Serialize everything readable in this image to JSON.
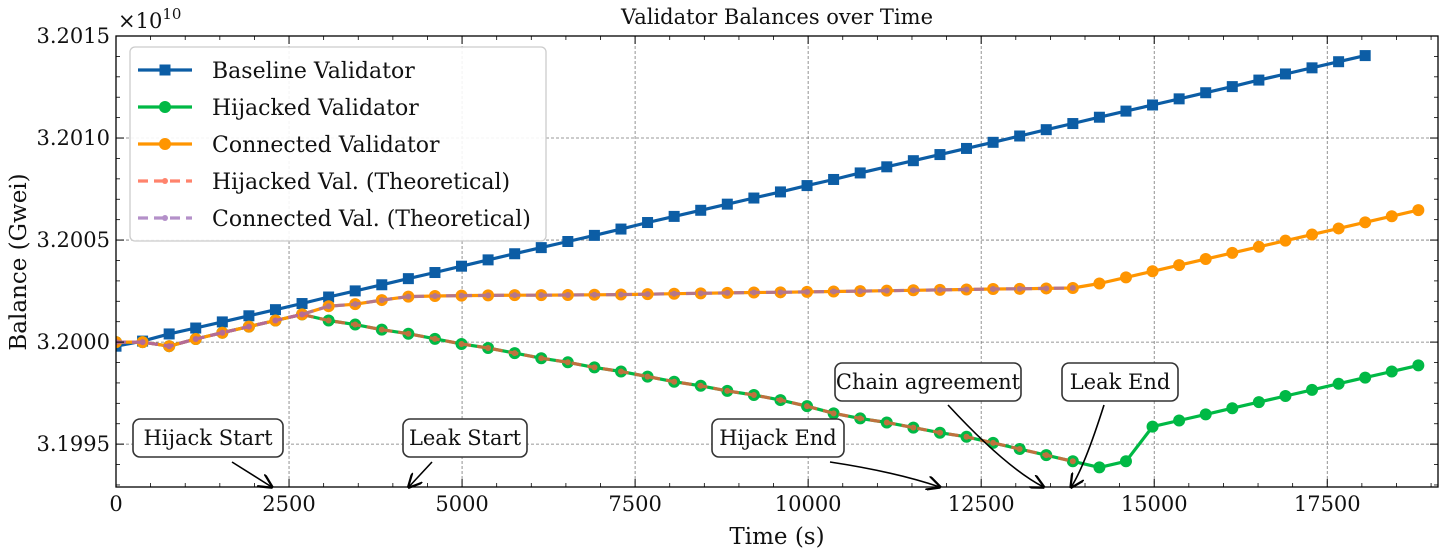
{
  "chart_data": {
    "type": "line",
    "title": "Validator Balances over Time",
    "xlabel": "Time (s)",
    "ylabel": "Balance (Gwei)",
    "y_offset_label": "×10",
    "y_offset_exponent": "10",
    "xlim": [
      0,
      19100
    ],
    "ylim": [
      3.19929,
      3.2015
    ],
    "x_ticks": [
      0,
      2500,
      5000,
      7500,
      10000,
      12500,
      15000,
      17500
    ],
    "x_tick_labels": [
      "0",
      "2500",
      "5000",
      "7500",
      "10000",
      "12500",
      "15000",
      "17500"
    ],
    "y_ticks": [
      3.1995,
      3.2,
      3.2005,
      3.201,
      3.2015
    ],
    "y_tick_labels": [
      "3.1995",
      "3.2000",
      "3.2005",
      "3.2010",
      "3.2015"
    ],
    "grid": true,
    "legend_position": "top-left",
    "series": [
      {
        "name": "Baseline Validator",
        "color": "#0c5da5",
        "marker": "square",
        "style": "solid",
        "x": [
          0,
          384,
          768,
          1152,
          1536,
          1920,
          2304,
          2688,
          3072,
          3456,
          3840,
          4224,
          4608,
          4992,
          5376,
          5760,
          6144,
          6528,
          6912,
          7296,
          7680,
          8064,
          8448,
          8832,
          9216,
          9600,
          9984,
          10368,
          10752,
          11136,
          11520,
          11904,
          12288,
          12672,
          13056,
          13440,
          13824,
          14208,
          14592,
          14976,
          15360,
          15744,
          16128,
          16512,
          16896,
          17280,
          17664,
          18048
        ],
        "values": [
          3.19998,
          3.200005,
          3.20004,
          3.200069,
          3.200099,
          3.200129,
          3.200159,
          3.200189,
          3.200221,
          3.200251,
          3.200281,
          3.200311,
          3.200341,
          3.200372,
          3.200403,
          3.200433,
          3.200463,
          3.200493,
          3.200523,
          3.200554,
          3.200586,
          3.200616,
          3.200646,
          3.200676,
          3.200706,
          3.200736,
          3.200767,
          3.200797,
          3.200829,
          3.200859,
          3.200889,
          3.200919,
          3.200949,
          3.200979,
          3.20101,
          3.201041,
          3.201071,
          3.201102,
          3.201132,
          3.201162,
          3.201192,
          3.201222,
          3.201252,
          3.201284,
          3.201314,
          3.201344,
          3.201374,
          3.201404
        ]
      },
      {
        "name": "Hijacked Validator",
        "color": "#00b945",
        "marker": "circle",
        "style": "solid",
        "x": [
          0,
          384,
          768,
          1152,
          1536,
          1920,
          2304,
          2688,
          3072,
          3456,
          3840,
          4224,
          4608,
          4992,
          5376,
          5760,
          6144,
          6528,
          6912,
          7296,
          7680,
          8064,
          8448,
          8832,
          9216,
          9600,
          9984,
          10368,
          10752,
          11136,
          11520,
          11904,
          12288,
          12672,
          13056,
          13440,
          13824,
          14208,
          14592,
          14976,
          15360,
          15744,
          16128,
          16512,
          16896,
          17280,
          17664,
          18048,
          18432,
          18816
        ],
        "values": [
          3.2,
          3.2,
          3.19998,
          3.200015,
          3.200046,
          3.200076,
          3.200106,
          3.200136,
          3.200106,
          3.200086,
          3.200061,
          3.200041,
          3.200016,
          3.199991,
          3.199971,
          3.199946,
          3.199921,
          3.199901,
          3.199876,
          3.199856,
          3.199831,
          3.199806,
          3.199786,
          3.199761,
          3.199741,
          3.199716,
          3.199686,
          3.199651,
          3.199626,
          3.199606,
          3.199581,
          3.199556,
          3.199536,
          3.199506,
          3.199476,
          3.199446,
          3.199416,
          3.199386,
          3.199416,
          3.199586,
          3.199616,
          3.199646,
          3.199676,
          3.199706,
          3.199736,
          3.199766,
          3.199796,
          3.199826,
          3.199856,
          3.199886
        ]
      },
      {
        "name": "Connected Validator",
        "color": "#ff9500",
        "marker": "circle",
        "style": "solid",
        "x": [
          0,
          384,
          768,
          1152,
          1536,
          1920,
          2304,
          2688,
          3072,
          3456,
          3840,
          4224,
          4608,
          4992,
          5376,
          5760,
          6144,
          6528,
          6912,
          7296,
          7680,
          8064,
          8448,
          8832,
          9216,
          9600,
          9984,
          10368,
          10752,
          11136,
          11520,
          11904,
          12288,
          12672,
          13056,
          13440,
          13824,
          14208,
          14592,
          14976,
          15360,
          15744,
          16128,
          16512,
          16896,
          17280,
          17664,
          18048,
          18432,
          18816
        ],
        "values": [
          3.2,
          3.2,
          3.19998,
          3.200015,
          3.200046,
          3.200076,
          3.200106,
          3.200136,
          3.200176,
          3.200186,
          3.200206,
          3.200223,
          3.200226,
          3.200228,
          3.200229,
          3.20023,
          3.20023,
          3.200231,
          3.200232,
          3.200233,
          3.200235,
          3.200237,
          3.200239,
          3.200241,
          3.200243,
          3.200244,
          3.200246,
          3.200248,
          3.20025,
          3.200252,
          3.200254,
          3.200256,
          3.200258,
          3.20026,
          3.200261,
          3.200263,
          3.200265,
          3.200287,
          3.200317,
          3.200347,
          3.200377,
          3.200407,
          3.200437,
          3.200467,
          3.200497,
          3.200527,
          3.200557,
          3.200587,
          3.200617,
          3.200647
        ]
      },
      {
        "name": "Hijacked Val. (Theoretical)",
        "color": "#ff5a3c",
        "marker": "small-circle",
        "style": "dashed",
        "x": [
          0,
          384,
          768,
          1152,
          1536,
          1920,
          2304,
          2688,
          3072,
          3456,
          3840,
          4224,
          4608,
          4992,
          5376,
          5760,
          6144,
          6528,
          6912,
          7296,
          7680,
          8064,
          8448,
          8832,
          9216,
          9600,
          9984,
          10368,
          10752,
          11136,
          11520,
          11904,
          12288,
          12672,
          13056,
          13440,
          13824
        ],
        "values": [
          3.2,
          3.2,
          3.19998,
          3.200015,
          3.200046,
          3.200076,
          3.200106,
          3.200136,
          3.200106,
          3.200086,
          3.200061,
          3.200041,
          3.200016,
          3.199991,
          3.199971,
          3.199946,
          3.199921,
          3.199901,
          3.199876,
          3.199856,
          3.199831,
          3.199806,
          3.199786,
          3.199761,
          3.199741,
          3.199716,
          3.199686,
          3.199651,
          3.199626,
          3.199606,
          3.199581,
          3.199556,
          3.199536,
          3.199506,
          3.199476,
          3.199446,
          3.199416
        ]
      },
      {
        "name": "Connected Val. (Theoretical)",
        "color": "#9b6cb8",
        "marker": "small-circle",
        "style": "dashed",
        "x": [
          0,
          384,
          768,
          1152,
          1536,
          1920,
          2304,
          2688,
          3072,
          3456,
          3840,
          4224,
          4608,
          4992,
          5376,
          5760,
          6144,
          6528,
          6912,
          7296,
          7680,
          8064,
          8448,
          8832,
          9216,
          9600,
          9984,
          10368,
          10752,
          11136,
          11520,
          11904,
          12288,
          12672,
          13056,
          13440,
          13824
        ],
        "values": [
          3.2,
          3.2,
          3.19998,
          3.200015,
          3.200046,
          3.200076,
          3.200106,
          3.200136,
          3.200176,
          3.200186,
          3.200206,
          3.200223,
          3.200226,
          3.200228,
          3.200229,
          3.20023,
          3.20023,
          3.200231,
          3.200232,
          3.200233,
          3.200235,
          3.200237,
          3.200239,
          3.200241,
          3.200243,
          3.200244,
          3.200246,
          3.200248,
          3.20025,
          3.200252,
          3.200254,
          3.200256,
          3.200258,
          3.20026,
          3.200261,
          3.200263,
          3.200265
        ]
      }
    ],
    "annotations": [
      {
        "text": "Hijack Start",
        "target_x": 2250,
        "target_y": 3.19929
      },
      {
        "text": "Leak Start",
        "target_x": 4230,
        "target_y": 3.19929
      },
      {
        "text": "Hijack End",
        "target_x": 11900,
        "target_y": 3.19929
      },
      {
        "text": "Chain agreement",
        "target_x": 13400,
        "target_y": 3.19929
      },
      {
        "text": "Leak End",
        "target_x": 13800,
        "target_y": 3.19929
      }
    ]
  }
}
